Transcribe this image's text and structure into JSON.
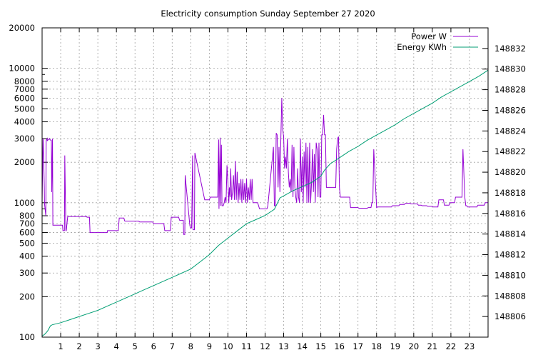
{
  "chart_data": {
    "type": "line",
    "title": "Electricity consumption Sunday September 27 2020",
    "xlabel": "",
    "ylabel": "",
    "y2label": "",
    "grid": true,
    "legend_position": "top-right",
    "x_range": [
      0,
      24
    ],
    "x_ticks": [
      "1",
      "2",
      "3",
      "4",
      "5",
      "6",
      "7",
      "8",
      "9",
      "10",
      "11",
      "12",
      "13",
      "14",
      "15",
      "16",
      "17",
      "18",
      "19",
      "20",
      "21",
      "22",
      "23"
    ],
    "y_left": {
      "scale": "log",
      "range": [
        100,
        20000
      ],
      "ticks": [
        "100",
        "200",
        "300",
        "400",
        "500",
        "600",
        "700",
        "800",
        "1000",
        "2000",
        "3000",
        "4000",
        "5000",
        "6000",
        "7000",
        "8000",
        "10000",
        "20000"
      ]
    },
    "y_right": {
      "scale": "linear",
      "range": [
        148804,
        148834
      ],
      "ticks": [
        "148806",
        "148808",
        "148810",
        "148812",
        "148814",
        "148816",
        "148818",
        "148820",
        "148822",
        "148824",
        "148826",
        "148828",
        "148830",
        "148832"
      ]
    },
    "colors": {
      "power": "#9400d3",
      "energy": "#009e73",
      "grid": "#a0a0a0"
    },
    "series": [
      {
        "name": "Power W",
        "axis": "left",
        "x": [
          0,
          0.05,
          0.06,
          0.12,
          0.13,
          0.2,
          0.22,
          0.27,
          0.28,
          0.4,
          0.42,
          0.5,
          0.52,
          0.56,
          0.58,
          0.61,
          0.62,
          1.1,
          1.12,
          1.2,
          1.22,
          1.28,
          1.3,
          1.38,
          1.4,
          2.4,
          2.42,
          2.55,
          2.58,
          3.5,
          3.52,
          4.1,
          4.15,
          4.4,
          4.45,
          5.2,
          5.25,
          5.95,
          6.0,
          6.55,
          6.6,
          6.9,
          6.95,
          7.35,
          7.4,
          7.6,
          7.62,
          7.68,
          7.7,
          7.95,
          7.98,
          8.05,
          8.1,
          8.12,
          8.2,
          8.22,
          8.75,
          8.8,
          9.0,
          9.05,
          9.4,
          9.45,
          9.5,
          9.52,
          9.58,
          9.6,
          9.65,
          9.68,
          9.75,
          9.8,
          9.85,
          9.9,
          9.95,
          10.0,
          10.05,
          10.08,
          10.12,
          10.15,
          10.2,
          10.25,
          10.3,
          10.35,
          10.4,
          10.45,
          10.5,
          10.55,
          10.6,
          10.65,
          10.7,
          10.75,
          10.8,
          10.85,
          10.9,
          10.95,
          11.0,
          11.05,
          11.1,
          11.15,
          11.2,
          11.25,
          11.3,
          11.35,
          11.4,
          11.45,
          11.5,
          11.55,
          11.6,
          11.65,
          11.7,
          12.1,
          12.15,
          12.45,
          12.5,
          12.55,
          12.6,
          12.65,
          12.7,
          12.75,
          12.8,
          12.85,
          12.9,
          12.95,
          13.0,
          13.05,
          13.1,
          13.15,
          13.2,
          13.25,
          13.3,
          13.35,
          13.4,
          13.45,
          13.5,
          13.55,
          13.6,
          13.65,
          13.7,
          13.75,
          13.8,
          13.85,
          13.9,
          13.95,
          14.0,
          14.05,
          14.1,
          14.15,
          14.2,
          14.25,
          14.3,
          14.35,
          14.4,
          14.45,
          14.5,
          14.55,
          14.6,
          14.65,
          14.7,
          14.75,
          14.8,
          14.85,
          14.9,
          14.95,
          15.0,
          15.05,
          15.1,
          15.15,
          15.2,
          15.25,
          15.3,
          15.35,
          15.4,
          15.45,
          15.5,
          15.55,
          15.6,
          15.65,
          15.7,
          15.75,
          15.8,
          15.85,
          15.9,
          15.95,
          16.0,
          16.05,
          16.5,
          16.55,
          16.6,
          17.0,
          17.05,
          17.5,
          17.55,
          17.7,
          17.75,
          17.8,
          17.85,
          18.0,
          18.05,
          18.5,
          18.55,
          18.8,
          18.85,
          19.2,
          19.25,
          19.5,
          19.55,
          19.8,
          19.85,
          20.2,
          20.25,
          20.4,
          20.45,
          20.7,
          20.75,
          21.0,
          21.05,
          21.3,
          21.35,
          21.6,
          21.65,
          21.9,
          21.95,
          22.2,
          22.25,
          22.4,
          22.45,
          22.6,
          22.65,
          22.75,
          22.8,
          22.85,
          22.9,
          23.4,
          23.45,
          23.8,
          23.85,
          24.0
        ],
        "values": [
          1000,
          3000,
          2900,
          1300,
          980,
          800,
          2900,
          3000,
          2900,
          3000,
          2950,
          2900,
          1200,
          3000,
          680,
          680,
          680,
          680,
          620,
          620,
          2250,
          620,
          620,
          790,
          790,
          790,
          780,
          780,
          600,
          600,
          620,
          620,
          770,
          770,
          730,
          730,
          720,
          720,
          700,
          700,
          620,
          620,
          780,
          780,
          740,
          740,
          580,
          580,
          1600,
          680,
          650,
          650,
          2250,
          630,
          630,
          2350,
          1050,
          1050,
          1050,
          1100,
          1100,
          1100,
          2950,
          900,
          3050,
          950,
          2700,
          950,
          950,
          1000,
          1100,
          1000,
          1900,
          1400,
          1000,
          1300,
          1100,
          1800,
          1050,
          1200,
          1600,
          1050,
          2050,
          1050,
          1700,
          1000,
          1400,
          1050,
          1500,
          1000,
          1500,
          1050,
          1400,
          1000,
          1500,
          1000,
          1300,
          1050,
          1500,
          1050,
          1500,
          1000,
          1000,
          1000,
          1000,
          1000,
          1000,
          950,
          900,
          900,
          950,
          2600,
          950,
          950,
          3300,
          3200,
          1300,
          2600,
          1200,
          3000,
          6000,
          3500,
          3100,
          1800,
          2200,
          1800,
          3000,
          1700,
          1300,
          1500,
          1200,
          2700,
          1100,
          2600,
          1300,
          1100,
          1000,
          1800,
          1100,
          1000,
          3000,
          1200,
          2200,
          1000,
          2400,
          1300,
          2800,
          1000,
          2600,
          1000,
          2800,
          1000,
          1400,
          2500,
          1200,
          2300,
          1000,
          2800,
          2500,
          1100,
          2800,
          1100,
          1100,
          3200,
          3200,
          4500,
          3200,
          3200,
          1300,
          1300,
          1300,
          1300,
          1300,
          1300,
          1300,
          1300,
          1300,
          1300,
          1300,
          2500,
          3000,
          3100,
          1300,
          1100,
          1100,
          1100,
          920,
          920,
          910,
          910,
          920,
          920,
          1000,
          1000,
          2500,
          920,
          930,
          930,
          930,
          930,
          950,
          950,
          970,
          970,
          990,
          990,
          980,
          980,
          960,
          960,
          950,
          950,
          940,
          940,
          930,
          930,
          1050,
          1050,
          960,
          960,
          1000,
          1000,
          1100,
          1100,
          1100,
          1100,
          2500,
          1100,
          950,
          950,
          930,
          930,
          960,
          960,
          1000,
          1000
        ]
      },
      {
        "name": "Energy KWh",
        "axis": "right",
        "x": [
          0,
          0.15,
          0.3,
          0.45,
          0.55,
          1.0,
          1.5,
          2.0,
          2.5,
          3.0,
          3.5,
          4.0,
          4.5,
          5.0,
          5.5,
          6.0,
          6.5,
          7.0,
          7.5,
          8.0,
          8.5,
          9.0,
          9.5,
          10.0,
          10.5,
          11.0,
          11.5,
          12.0,
          12.5,
          12.8,
          13.0,
          13.5,
          14.0,
          14.5,
          15.0,
          15.2,
          15.5,
          16.0,
          16.5,
          17.0,
          17.5,
          18.0,
          18.5,
          19.0,
          19.5,
          20.0,
          20.5,
          21.0,
          21.5,
          22.0,
          22.5,
          23.0,
          23.5,
          24.0
        ],
        "values": [
          148804.1,
          148804.3,
          148804.6,
          148805.1,
          148805.2,
          148805.4,
          148805.7,
          148806.0,
          148806.3,
          148806.6,
          148807.0,
          148807.4,
          148807.8,
          148808.2,
          148808.6,
          148809.0,
          148809.4,
          148809.8,
          148810.2,
          148810.6,
          148811.3,
          148812.0,
          148812.9,
          148813.6,
          148814.3,
          148815.0,
          148815.4,
          148815.8,
          148816.4,
          148817.5,
          148817.7,
          148818.2,
          148818.6,
          148819.0,
          148819.6,
          148820.2,
          148820.8,
          148821.4,
          148822.0,
          148822.5,
          148823.1,
          148823.6,
          148824.1,
          148824.6,
          148825.2,
          148825.7,
          148826.2,
          148826.7,
          148827.3,
          148827.8,
          148828.3,
          148828.8,
          148829.3,
          148829.9
        ]
      }
    ]
  }
}
